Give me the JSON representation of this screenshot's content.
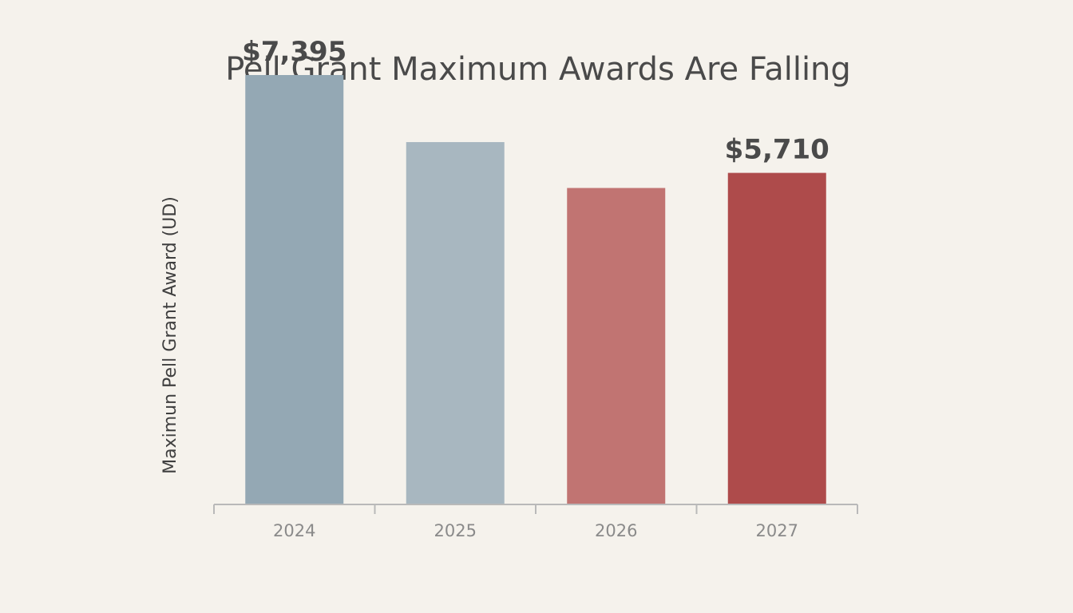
{
  "chart_data": {
    "type": "bar",
    "title": "Pell Grant Maximum Awards Are Falling",
    "xlabel": "",
    "ylabel": "Maximun Pell Grant Award (UD)",
    "categories": [
      "2024",
      "2025",
      "2026",
      "2027"
    ],
    "values": [
      7395,
      6240,
      5450,
      5710
    ],
    "value_labels": [
      "$7,395",
      "",
      "",
      "$5,710"
    ],
    "ylim": [
      0,
      8000
    ],
    "grid": false,
    "legend": "none",
    "colors": [
      "#94a8b4",
      "#a8b7c0",
      "#c17472",
      "#ae4b4b"
    ]
  }
}
